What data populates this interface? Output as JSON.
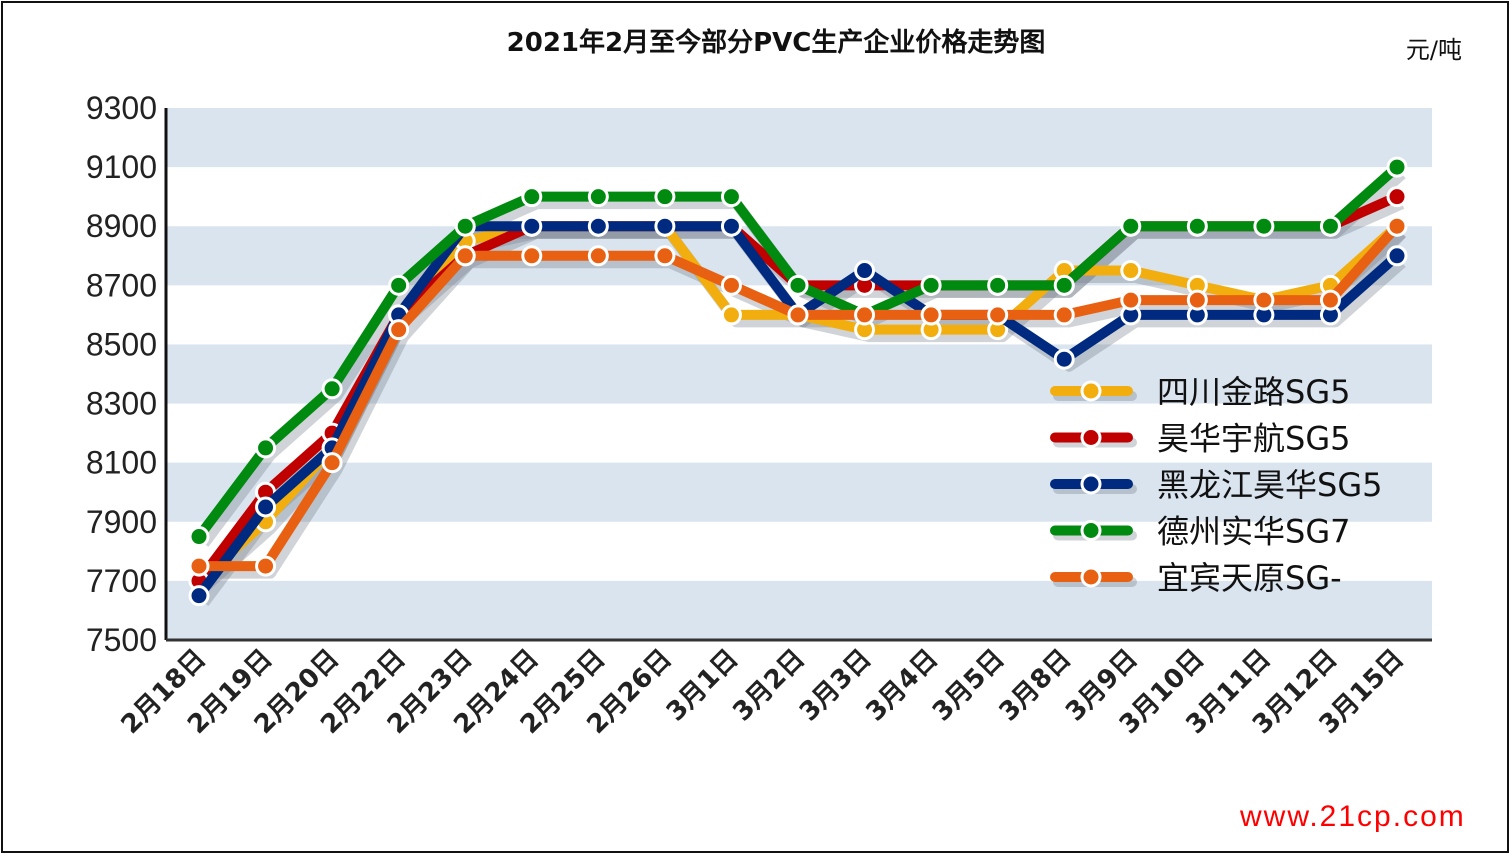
{
  "title": "2021年2月至今部分PVC生产企业价格走势图",
  "unit": "元/吨",
  "watermark": "www.21cp.com",
  "colors": {
    "band": "#d9e4ef",
    "yellow": "#f2ae0f",
    "red": "#c00000",
    "blue": "#002a7f",
    "green": "#008a0f",
    "orange": "#e86112"
  },
  "chart_data": {
    "type": "line",
    "title": "2021年2月至今部分PVC生产企业价格走势图",
    "xlabel": "",
    "ylabel": "元/吨",
    "ylim": [
      7500,
      9300
    ],
    "yticks": [
      9300,
      9100,
      8900,
      8700,
      8500,
      8300,
      8100,
      7900,
      7700,
      7500
    ],
    "grid": "alternating horizontal bands",
    "legend_position": "right-center inside plot",
    "categories": [
      "2月18日",
      "2月19日",
      "2月20日",
      "2月22日",
      "2月23日",
      "2月24日",
      "2月25日",
      "2月26日",
      "3月1日",
      "3月2日",
      "3月3日",
      "3月4日",
      "3月5日",
      "3月8日",
      "3月9日",
      "3月10日",
      "3月11日",
      "3月12日",
      "3月15日"
    ],
    "series": [
      {
        "name": "四川金路SG5",
        "color": "#f2ae0f",
        "values": [
          7700,
          7900,
          8150,
          8600,
          8850,
          8900,
          8900,
          8900,
          8600,
          8600,
          8550,
          8550,
          8550,
          8750,
          8750,
          8700,
          8650,
          8700,
          8900
        ]
      },
      {
        "name": "昊华宇航SG5",
        "color": "#c00000",
        "values": [
          7700,
          8000,
          8200,
          8600,
          8800,
          8900,
          8900,
          8900,
          8900,
          8700,
          8700,
          8700,
          8700,
          8700,
          8900,
          8900,
          8900,
          8900,
          9000
        ]
      },
      {
        "name": "黑龙江昊华SG5",
        "color": "#002a7f",
        "values": [
          7650,
          7950,
          8150,
          8600,
          8900,
          8900,
          8900,
          8900,
          8900,
          8600,
          8750,
          8600,
          8600,
          8450,
          8600,
          8600,
          8600,
          8600,
          8800
        ]
      },
      {
        "name": "德州实华SG7",
        "color": "#008a0f",
        "values": [
          7850,
          8150,
          8350,
          8700,
          8900,
          9000,
          9000,
          9000,
          9000,
          8700,
          8600,
          8700,
          8700,
          8700,
          8900,
          8900,
          8900,
          8900,
          9100
        ]
      },
      {
        "name": "宜宾天原SG-",
        "color": "#e86112",
        "values": [
          7750,
          7750,
          8100,
          8550,
          8800,
          8800,
          8800,
          8800,
          8700,
          8600,
          8600,
          8600,
          8600,
          8600,
          8650,
          8650,
          8650,
          8650,
          8900
        ]
      }
    ]
  }
}
